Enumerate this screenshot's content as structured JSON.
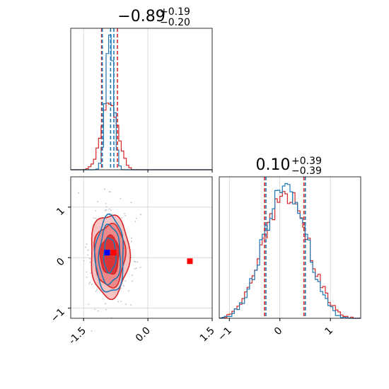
{
  "chart_data": {
    "type": "corner",
    "colors": {
      "blue": "#1f77b4",
      "red": "#d62728",
      "red_fill": "#f08080",
      "marker_blue": "#0000ff",
      "marker_red": "#ff0000",
      "grid": "#cccccc",
      "scatter": "#bbbbbb"
    },
    "params": [
      {
        "title_main": "−0.89",
        "title_sup": "+0.19",
        "title_sub": "−0.20",
        "range": [
          -1.8,
          1.5
        ],
        "quantiles_red": [
          -1.08,
          -0.71
        ],
        "quantiles_blue": [
          -1.08,
          -0.81
        ],
        "median_blue": -0.87,
        "ticks": [
          "-1.5",
          "0.0",
          "1.5"
        ],
        "tick_values": [
          -1.5,
          0.0,
          1.5
        ]
      },
      {
        "title_main": "0.10",
        "title_sup": "+0.39",
        "title_sub": "−0.39",
        "range": [
          -1.2,
          1.6
        ],
        "quantiles_red": [
          -0.29,
          0.49
        ],
        "quantiles_blue": [
          -0.29,
          0.49
        ],
        "ticks": [
          "−1",
          "0",
          "1"
        ],
        "tick_values": [
          -1,
          0,
          1
        ]
      }
    ],
    "joint": {
      "x_range": [
        -1.8,
        1.5
      ],
      "y_range": [
        -1.2,
        1.6
      ],
      "y_ticks": [
        "−1",
        "0",
        "1"
      ],
      "y_tick_values": [
        -1,
        0,
        1
      ],
      "center": [
        -0.89,
        0.1
      ],
      "contours_red": [
        {
          "rx": 0.45,
          "ry": 0.82
        },
        {
          "rx": 0.36,
          "ry": 0.62
        },
        {
          "rx": 0.22,
          "ry": 0.38
        }
      ],
      "contours_blue": [
        {
          "rx": 0.33,
          "ry": 0.76
        },
        {
          "rx": 0.25,
          "ry": 0.58
        },
        {
          "rx": 0.14,
          "ry": 0.34
        }
      ],
      "marker_blue": [
        -0.95,
        0.1
      ],
      "marker_red": [
        0.98,
        -0.07
      ]
    }
  }
}
